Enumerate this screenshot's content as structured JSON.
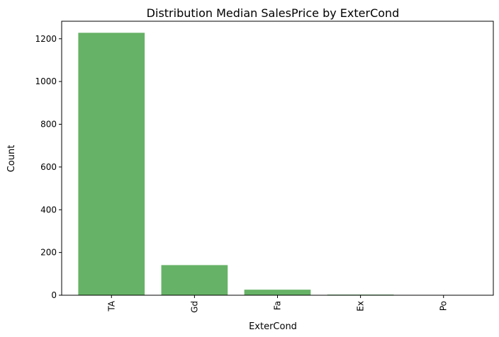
{
  "chart_data": {
    "type": "bar",
    "title": "Distribution Median SalesPrice by ExterCond",
    "xlabel": "ExterCond",
    "ylabel": "Count",
    "categories": [
      "TA",
      "Gd",
      "Fa",
      "Ex",
      "Po"
    ],
    "values": [
      1228,
      141,
      26,
      3,
      1
    ],
    "ylim": [
      0,
      1282
    ],
    "yticks": [
      "0",
      "200",
      "400",
      "600",
      "800",
      "1000",
      "1200"
    ],
    "bar_color": "#66b266",
    "grid": false,
    "legend": "none"
  }
}
